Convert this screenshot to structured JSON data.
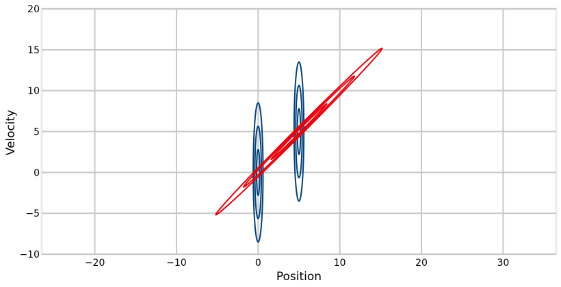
{
  "chart_data": {
    "type": "contour",
    "title": "",
    "xlabel": "Position",
    "ylabel": "Velocity",
    "xlim": [
      -26.5,
      36.5
    ],
    "ylim": [
      -10,
      20
    ],
    "xticks": [
      -20,
      -10,
      0,
      10,
      20,
      30
    ],
    "xtick_labels": [
      "−20",
      "−10",
      "0",
      "10",
      "20",
      "30"
    ],
    "yticks": [
      -10,
      -5,
      0,
      5,
      10,
      15,
      20
    ],
    "ytick_labels": [
      "−10",
      "−5",
      "0",
      "5",
      "10",
      "15",
      "20"
    ],
    "grid": true,
    "legend": "none",
    "series": [
      {
        "color": "#00407a",
        "ellipses": [
          {
            "cx": 0,
            "cy": 0,
            "rx": 0.6,
            "ry": 8.5
          },
          {
            "cx": 0,
            "cy": 0,
            "rx": 0.4,
            "ry": 5.65
          },
          {
            "cx": 0,
            "cy": 0,
            "rx": 0.2,
            "ry": 2.8
          },
          {
            "cx": 5,
            "cy": 5,
            "rx": 0.6,
            "ry": 8.5
          },
          {
            "cx": 5,
            "cy": 5,
            "rx": 0.4,
            "ry": 5.65
          },
          {
            "cx": 5,
            "cy": 5,
            "rx": 0.2,
            "ry": 2.8
          }
        ]
      },
      {
        "color": "#e8000b",
        "ellipses": [
          {
            "cx": 5,
            "cy": 5,
            "major_half": 14.4,
            "minor_half": 0.45,
            "slope": 1.0
          },
          {
            "cx": 5,
            "cy": 5,
            "major_half": 9.6,
            "minor_half": 0.3,
            "slope": 1.0
          },
          {
            "cx": 5,
            "cy": 5,
            "major_half": 4.8,
            "minor_half": 0.15,
            "slope": 1.0
          }
        ]
      }
    ]
  },
  "colors": {
    "background": "#ffffff",
    "grid": "#c8c8c8",
    "frame": "#ebebeb",
    "blue": "#00407a",
    "red": "#e8000b"
  }
}
